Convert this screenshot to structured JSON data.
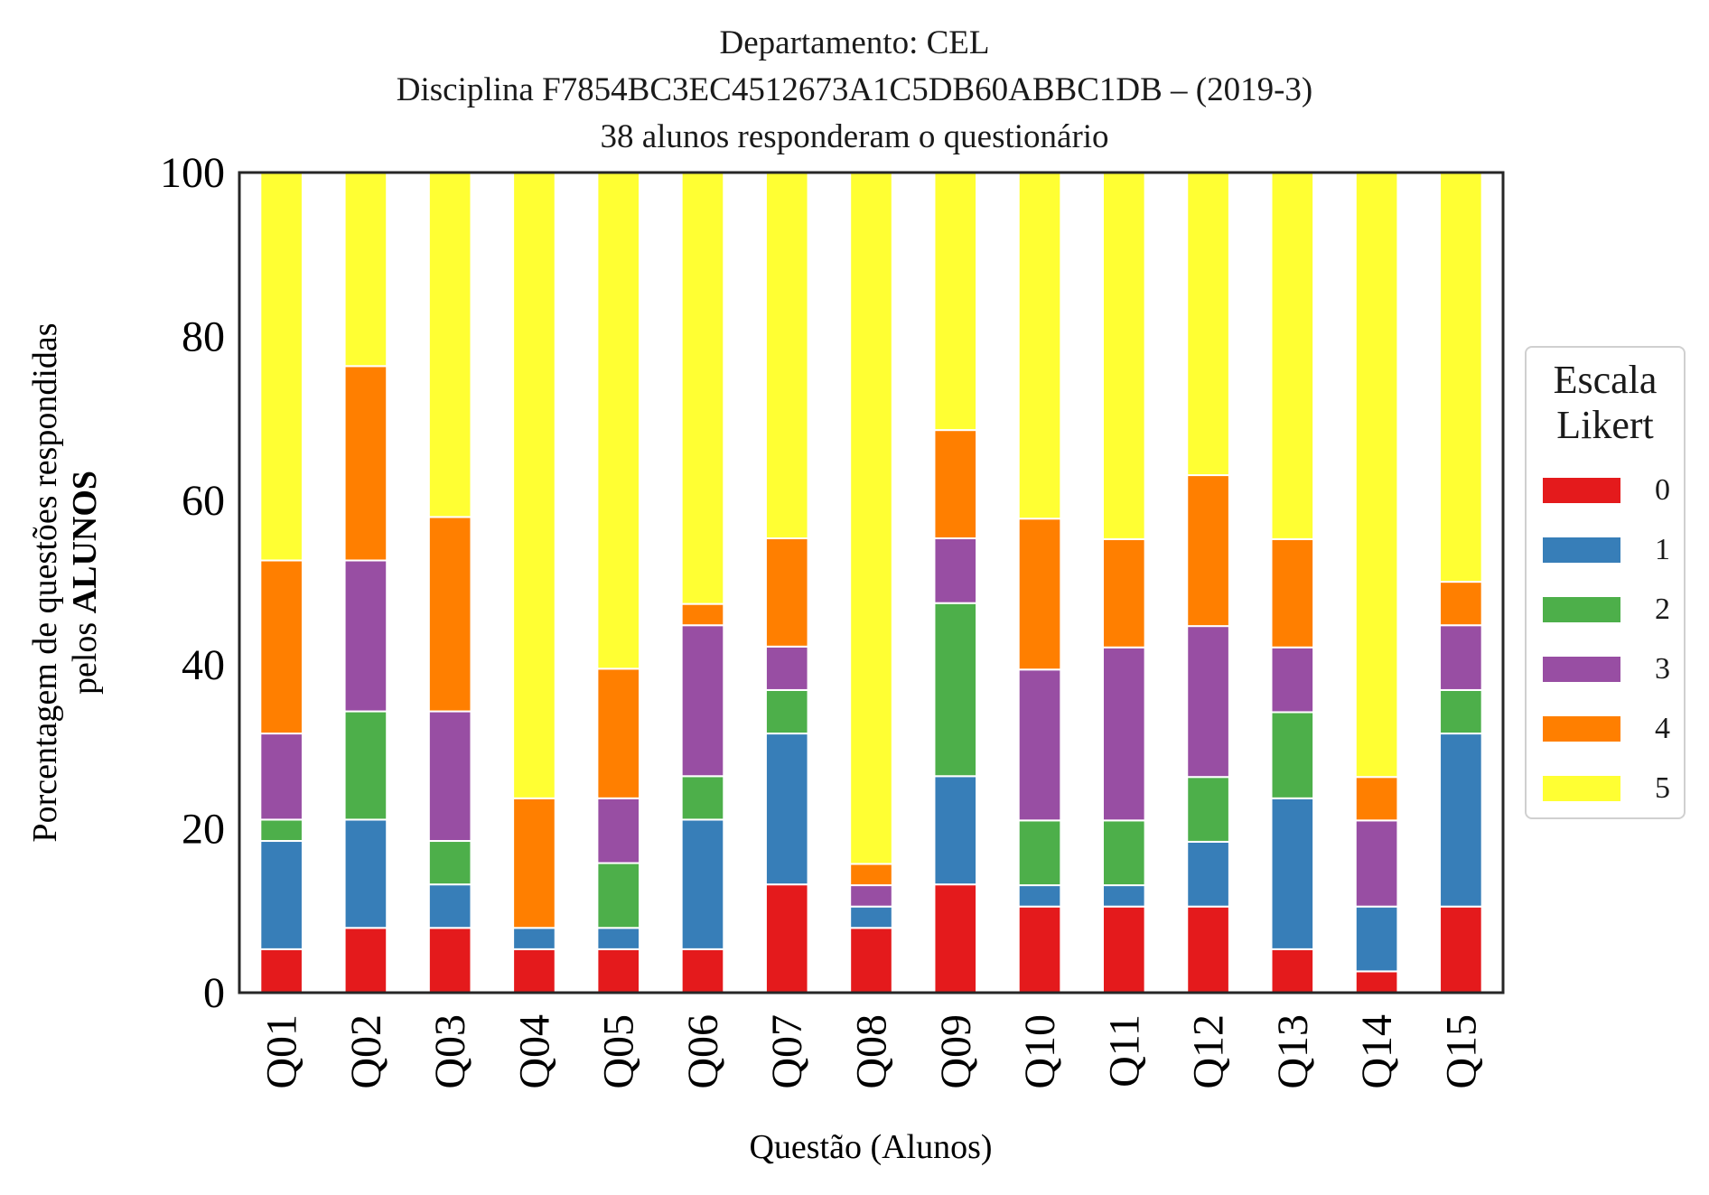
{
  "title": {
    "line1": "Departamento: CEL",
    "line2": "Disciplina F7854BC3EC4512673A1C5DB60ABBC1DB – (2019-3)",
    "line3": "38 alunos responderam o questionário"
  },
  "colors": {
    "0": "#e41a1c",
    "1": "#377eb8",
    "2": "#4daf4a",
    "3": "#984ea3",
    "4": "#ff7f00",
    "5": "#ffff33"
  },
  "chart_data": {
    "type": "bar",
    "stacked": true,
    "title": "Departamento: CEL\nDisciplina F7854BC3EC4512673A1C5DB60ABBC1DB – (2019-3)\n38 alunos responderam o questionário",
    "xlabel": "Questão (Alunos)",
    "ylabel_line1": "Porcentagem de questões respondidas",
    "ylabel_line2_prefix": "pelos ",
    "ylabel_line2_bold": "ALUNOS",
    "ylim": [
      0,
      100
    ],
    "yticks": [
      0,
      20,
      40,
      60,
      80,
      100
    ],
    "grid": false,
    "legend_title_line1": "Escala",
    "legend_title_line2": "Likert",
    "legend_position": "right",
    "categories": [
      "Q01",
      "Q02",
      "Q03",
      "Q04",
      "Q05",
      "Q06",
      "Q07",
      "Q08",
      "Q09",
      "Q10",
      "Q11",
      "Q12",
      "Q13",
      "Q14",
      "Q15"
    ],
    "series": [
      {
        "name": "0",
        "values": [
          5.3,
          7.9,
          7.9,
          5.3,
          5.3,
          5.3,
          13.2,
          7.9,
          13.2,
          10.5,
          10.5,
          10.5,
          5.3,
          2.6,
          10.5
        ]
      },
      {
        "name": "1",
        "values": [
          13.2,
          13.2,
          5.3,
          2.6,
          2.6,
          15.8,
          18.4,
          2.6,
          13.2,
          2.6,
          2.6,
          7.9,
          18.4,
          7.9,
          21.1
        ]
      },
      {
        "name": "2",
        "values": [
          2.6,
          13.2,
          5.3,
          0,
          7.9,
          5.3,
          5.3,
          0,
          21.1,
          7.9,
          7.9,
          7.9,
          10.5,
          0,
          5.3
        ]
      },
      {
        "name": "3",
        "values": [
          10.5,
          18.4,
          15.8,
          0,
          7.9,
          18.4,
          5.3,
          2.6,
          7.9,
          18.4,
          21.1,
          18.4,
          7.9,
          10.5,
          7.9
        ]
      },
      {
        "name": "4",
        "values": [
          21.1,
          23.7,
          23.7,
          15.8,
          15.8,
          2.6,
          13.2,
          2.6,
          13.2,
          18.4,
          13.2,
          18.4,
          13.2,
          5.3,
          5.3
        ]
      },
      {
        "name": "5",
        "values": [
          47.3,
          23.6,
          42.0,
          76.3,
          60.5,
          52.6,
          44.6,
          84.3,
          31.4,
          42.2,
          44.7,
          36.9,
          44.7,
          73.7,
          49.9
        ]
      }
    ]
  }
}
